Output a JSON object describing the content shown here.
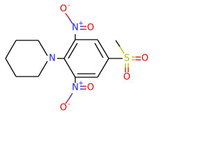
{
  "atoms": [
    {
      "label": "N"
    },
    {
      "label": "N",
      "charge": "+"
    },
    {
      "label": "O",
      "charge": "-"
    },
    {
      "label": "O"
    },
    {
      "label": "N",
      "charge": "+"
    },
    {
      "label": "O"
    },
    {
      "label": "O",
      "charge": "-"
    },
    {
      "label": "S"
    },
    {
      "label": "O"
    },
    {
      "label": "O"
    }
  ]
}
